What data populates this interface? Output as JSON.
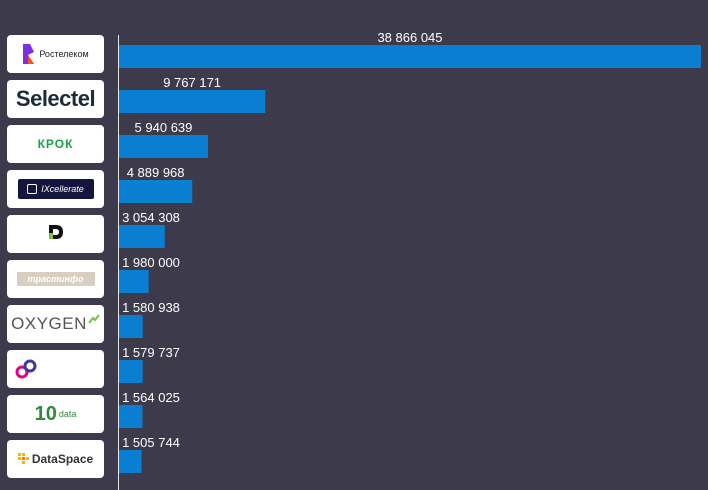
{
  "chart_data": {
    "type": "bar",
    "orientation": "horizontal",
    "categories": [
      "Ростелеком",
      "Selectel",
      "КРОК",
      "IXcellerate",
      "",
      "трастинфо",
      "OXYGEN",
      "",
      "data",
      "DataSpace"
    ],
    "values": [
      38866045,
      9767171,
      5940639,
      4889968,
      3054308,
      1980000,
      1580938,
      1579737,
      1564025,
      1505744
    ],
    "value_labels": [
      "38 866 045",
      "9 767 171",
      "5 940 639",
      "4 889 968",
      "3 054 308",
      "1 980 000",
      "1 580 938",
      "1 579 737",
      "1 564 025",
      "1 505 744"
    ],
    "xlim": [
      0,
      38866045
    ],
    "bar_color": "#0a7fd2",
    "label_color": "#ffffff",
    "grid": false,
    "legend": "none"
  },
  "logos": [
    {
      "name": "rostelecom",
      "text": "Ростелеком",
      "color": "#222222",
      "accent": "#7b2fe3"
    },
    {
      "name": "selectel",
      "text": "Selectel",
      "color": "#1c2a3a",
      "accent": "#e30613"
    },
    {
      "name": "krok",
      "text": "КРОК",
      "color": "#1aa34a"
    },
    {
      "name": "ixcellerate",
      "text": "IXcellerate",
      "color": "#ffffff",
      "bg": "#14143c"
    },
    {
      "name": "unknown-d",
      "text": "",
      "color": "#222222",
      "accent": "#7ac142"
    },
    {
      "name": "trastinfo",
      "text": "трастинфо",
      "color": "#ffffff",
      "bg": "#d8cfc2",
      "accent": "#e2231a"
    },
    {
      "name": "oxygen",
      "text": "OXYGEN",
      "color": "#555555",
      "accent": "#7ac142"
    },
    {
      "name": "unknown-link",
      "text": "",
      "color": "#e6007e",
      "accent": "#3a3aa0"
    },
    {
      "name": "10-data",
      "text": "data",
      "color": "#2e8b3c",
      "accent": "#2e8b3c"
    },
    {
      "name": "dataspace",
      "text": "DataSpace",
      "color": "#333333",
      "accent": "#f2b705"
    }
  ]
}
